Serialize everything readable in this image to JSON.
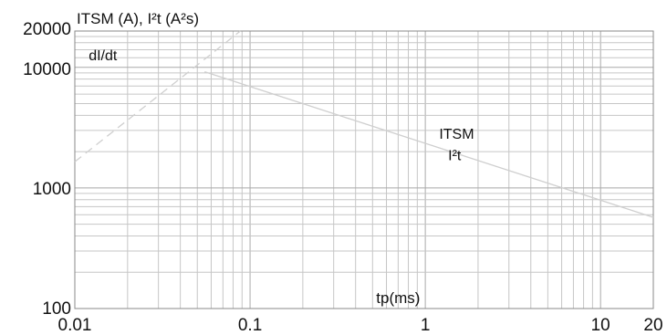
{
  "chart_data": {
    "type": "line",
    "title": "",
    "ylabel": "ITSM (A), I²t (A²s)",
    "xlabel": "tp(ms)",
    "xscale": "log",
    "yscale": "log",
    "xlim": [
      0.01,
      20
    ],
    "ylim": [
      100,
      20000
    ],
    "grid": true,
    "x_tick_labels": [
      {
        "value": 0.01,
        "label": "0.01"
      },
      {
        "value": 0.1,
        "label": "0.1"
      },
      {
        "value": 1,
        "label": "1"
      },
      {
        "value": 10,
        "label": "10"
      },
      {
        "value": 20,
        "label": "20"
      }
    ],
    "y_tick_labels": [
      {
        "value": 100,
        "label": "100"
      },
      {
        "value": 1000,
        "label": "1000"
      },
      {
        "value": 10000,
        "label": "10000"
      },
      {
        "value": 20000,
        "label": "20000"
      }
    ],
    "series": [
      {
        "key": "itsm",
        "label": "ITSM",
        "style": "solid",
        "color": "#cfcfcf",
        "x": [
          0.055,
          20
        ],
        "y": [
          9200,
          570
        ]
      },
      {
        "key": "didt",
        "label": "dI/dt",
        "style": "dashed",
        "color": "#cfcfcf",
        "x": [
          0.01,
          0.088
        ],
        "y": [
          1650,
          20000
        ]
      }
    ],
    "annotations": [
      {
        "key": "itsm_label",
        "text": "ITSM",
        "x": 1.2,
        "y": 2550
      },
      {
        "key": "i2t_label",
        "text": "I²t",
        "x": 1.35,
        "y": 1700
      },
      {
        "key": "didt_label",
        "text": "dI/dt",
        "x": 0.012,
        "y": 11500
      }
    ]
  }
}
